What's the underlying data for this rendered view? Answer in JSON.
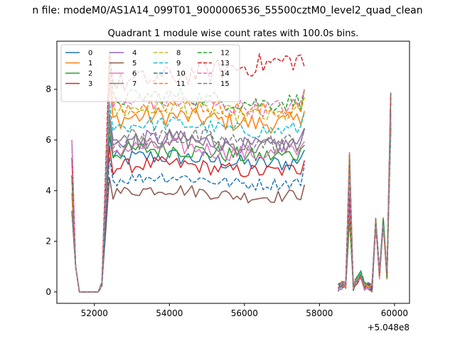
{
  "suptitle": "n file: modeM0/AS1A14_099T01_9000006536_55500cztM0_level2_quad_clean",
  "offset_label": "+5.048e8",
  "chart_data": {
    "type": "line",
    "title": "Quadrant 1 module wise count rates with 100.0s bins.",
    "xlabel": "",
    "ylabel": "",
    "x_offset": 504800000,
    "xlim": [
      51000,
      60400
    ],
    "ylim": [
      -0.45,
      9.9
    ],
    "xticks": [
      52000,
      54000,
      56000,
      58000,
      60000
    ],
    "xtick_labels": [
      "52000",
      "54000",
      "56000",
      "58000",
      "60000"
    ],
    "yticks": [
      0,
      2,
      4,
      6,
      8
    ],
    "ytick_labels": [
      "0",
      "2",
      "4",
      "6",
      "8"
    ],
    "grid": false,
    "legend": {
      "placement": "top-left",
      "columns": 4
    },
    "segments": [
      {
        "start": 51400,
        "step": 100,
        "count": 63,
        "pattern": "flare"
      },
      {
        "start": 58500,
        "step": 100,
        "count": 15,
        "pattern": "tail"
      }
    ],
    "series": [
      {
        "name": "0",
        "color": "#1f77b4",
        "dash": "solid",
        "level": 5.2,
        "amp": 0.35
      },
      {
        "name": "1",
        "color": "#ff7f0e",
        "dash": "solid",
        "level": 6.8,
        "amp": 0.4
      },
      {
        "name": "2",
        "color": "#2ca02c",
        "dash": "solid",
        "level": 5.5,
        "amp": 0.35
      },
      {
        "name": "3",
        "color": "#d62728",
        "dash": "solid",
        "level": 4.9,
        "amp": 0.3
      },
      {
        "name": "4",
        "color": "#9467bd",
        "dash": "solid",
        "level": 5.9,
        "amp": 0.35
      },
      {
        "name": "5",
        "color": "#8c564b",
        "dash": "solid",
        "level": 3.9,
        "amp": 0.25
      },
      {
        "name": "6",
        "color": "#e377c2",
        "dash": "solid",
        "level": 5.6,
        "amp": 0.35
      },
      {
        "name": "7",
        "color": "#7f7f7f",
        "dash": "solid",
        "level": 5.9,
        "amp": 0.4
      },
      {
        "name": "8",
        "color": "#bcbd22",
        "dash": "dashed",
        "level": 7.1,
        "amp": 0.35
      },
      {
        "name": "9",
        "color": "#17becf",
        "dash": "dashed",
        "level": 6.5,
        "amp": 0.3
      },
      {
        "name": "10",
        "color": "#1f77b4",
        "dash": "dashed",
        "level": 4.4,
        "amp": 0.25
      },
      {
        "name": "11",
        "color": "#ff7f0e",
        "dash": "dashed",
        "level": 7.3,
        "amp": 0.35
      },
      {
        "name": "12",
        "color": "#2ca02c",
        "dash": "dashed",
        "level": 7.6,
        "amp": 0.35
      },
      {
        "name": "13",
        "color": "#d62728",
        "dash": "dashed",
        "level": 8.2,
        "amp": 0.45
      },
      {
        "name": "14",
        "color": "#e377c2",
        "dash": "dashed",
        "level": 7.4,
        "amp": 0.35
      },
      {
        "name": "15",
        "color": "#7f7f7f",
        "dash": "dashed",
        "level": 6.0,
        "amp": 0.4
      }
    ]
  }
}
